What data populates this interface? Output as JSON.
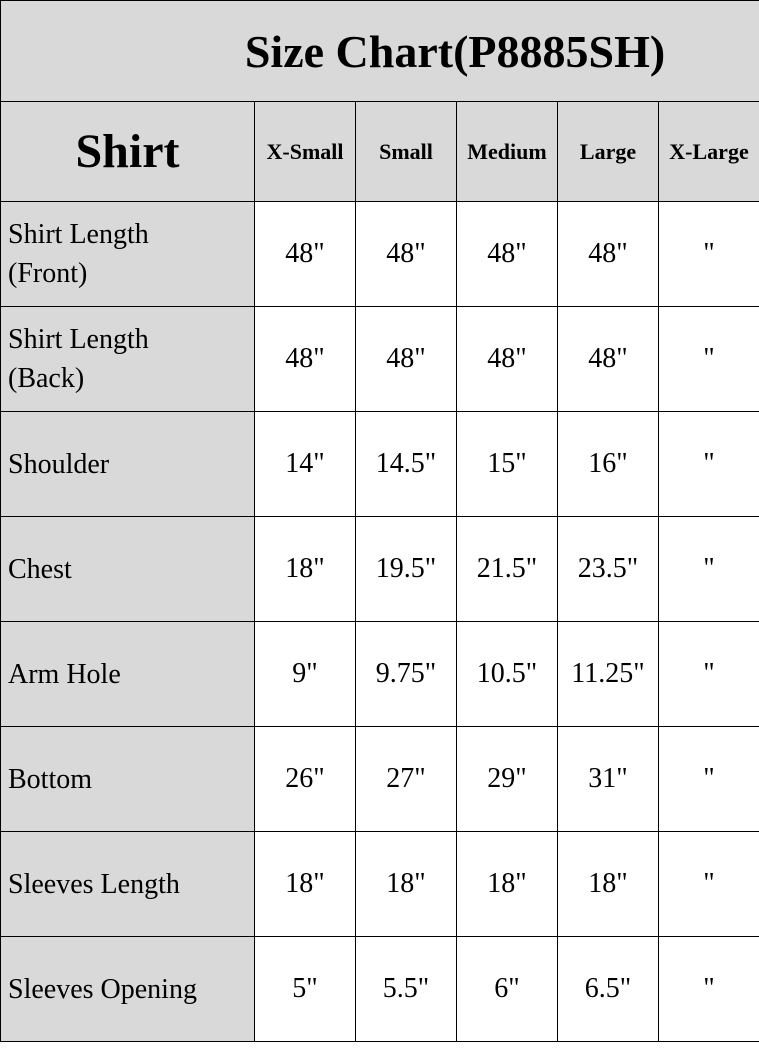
{
  "title": "Size Chart(P8885SH)",
  "header": {
    "category": "Shirt",
    "sizes": [
      "X-Small",
      "Small",
      "Medium",
      "Large",
      "X-Large"
    ]
  },
  "rows": [
    {
      "label_line1": "Shirt Length",
      "label_line2": "(Front)",
      "values": [
        "48\"",
        "48\"",
        "48\"",
        "48\"",
        "\""
      ]
    },
    {
      "label_line1": "Shirt Length",
      "label_line2": "(Back)",
      "values": [
        "48\"",
        "48\"",
        "48\"",
        "48\"",
        "\""
      ]
    },
    {
      "label_line1": "Shoulder",
      "label_line2": "",
      "values": [
        "14\"",
        "14.5\"",
        "15\"",
        "16\"",
        "\""
      ]
    },
    {
      "label_line1": "Chest",
      "label_line2": "",
      "values": [
        "18\"",
        "19.5\"",
        "21.5\"",
        "23.5\"",
        "\""
      ]
    },
    {
      "label_line1": "Arm Hole",
      "label_line2": "",
      "values": [
        "9\"",
        "9.75\"",
        "10.5\"",
        "11.25\"",
        "\""
      ]
    },
    {
      "label_line1": "Bottom",
      "label_line2": "",
      "values": [
        "26\"",
        "27\"",
        "29\"",
        "31\"",
        "\""
      ]
    },
    {
      "label_line1": "Sleeves Length",
      "label_line2": "",
      "values": [
        "18\"",
        "18\"",
        "18\"",
        "18\"",
        "\""
      ]
    },
    {
      "label_line1": "Sleeves Opening",
      "label_line2": "",
      "values": [
        "5\"",
        "5.5\"",
        "6\"",
        "6.5\"",
        "\""
      ]
    }
  ],
  "colors": {
    "header_bg": "#d9d9d9",
    "cell_bg": "#ffffff",
    "border": "#000000"
  }
}
